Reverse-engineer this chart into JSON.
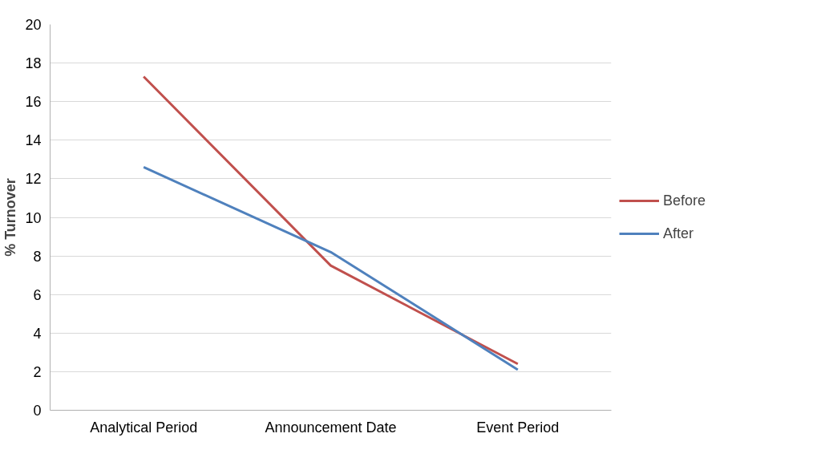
{
  "chart_data": {
    "type": "line",
    "ylabel": "% Turnover",
    "categories": [
      "Analytical Period",
      "Announcement Date",
      "Event Period"
    ],
    "series": [
      {
        "name": "Before",
        "color": "#c0504d",
        "values": [
          17.3,
          7.5,
          2.4
        ]
      },
      {
        "name": "After",
        "color": "#4f81bd",
        "values": [
          12.6,
          8.2,
          2.1
        ]
      }
    ],
    "ylim": [
      0,
      20
    ],
    "yticks": [
      0,
      2,
      4,
      6,
      8,
      10,
      12,
      14,
      16,
      18,
      20
    ],
    "grid": "y",
    "legend": "right",
    "marker": "none",
    "line_style": "solid"
  }
}
